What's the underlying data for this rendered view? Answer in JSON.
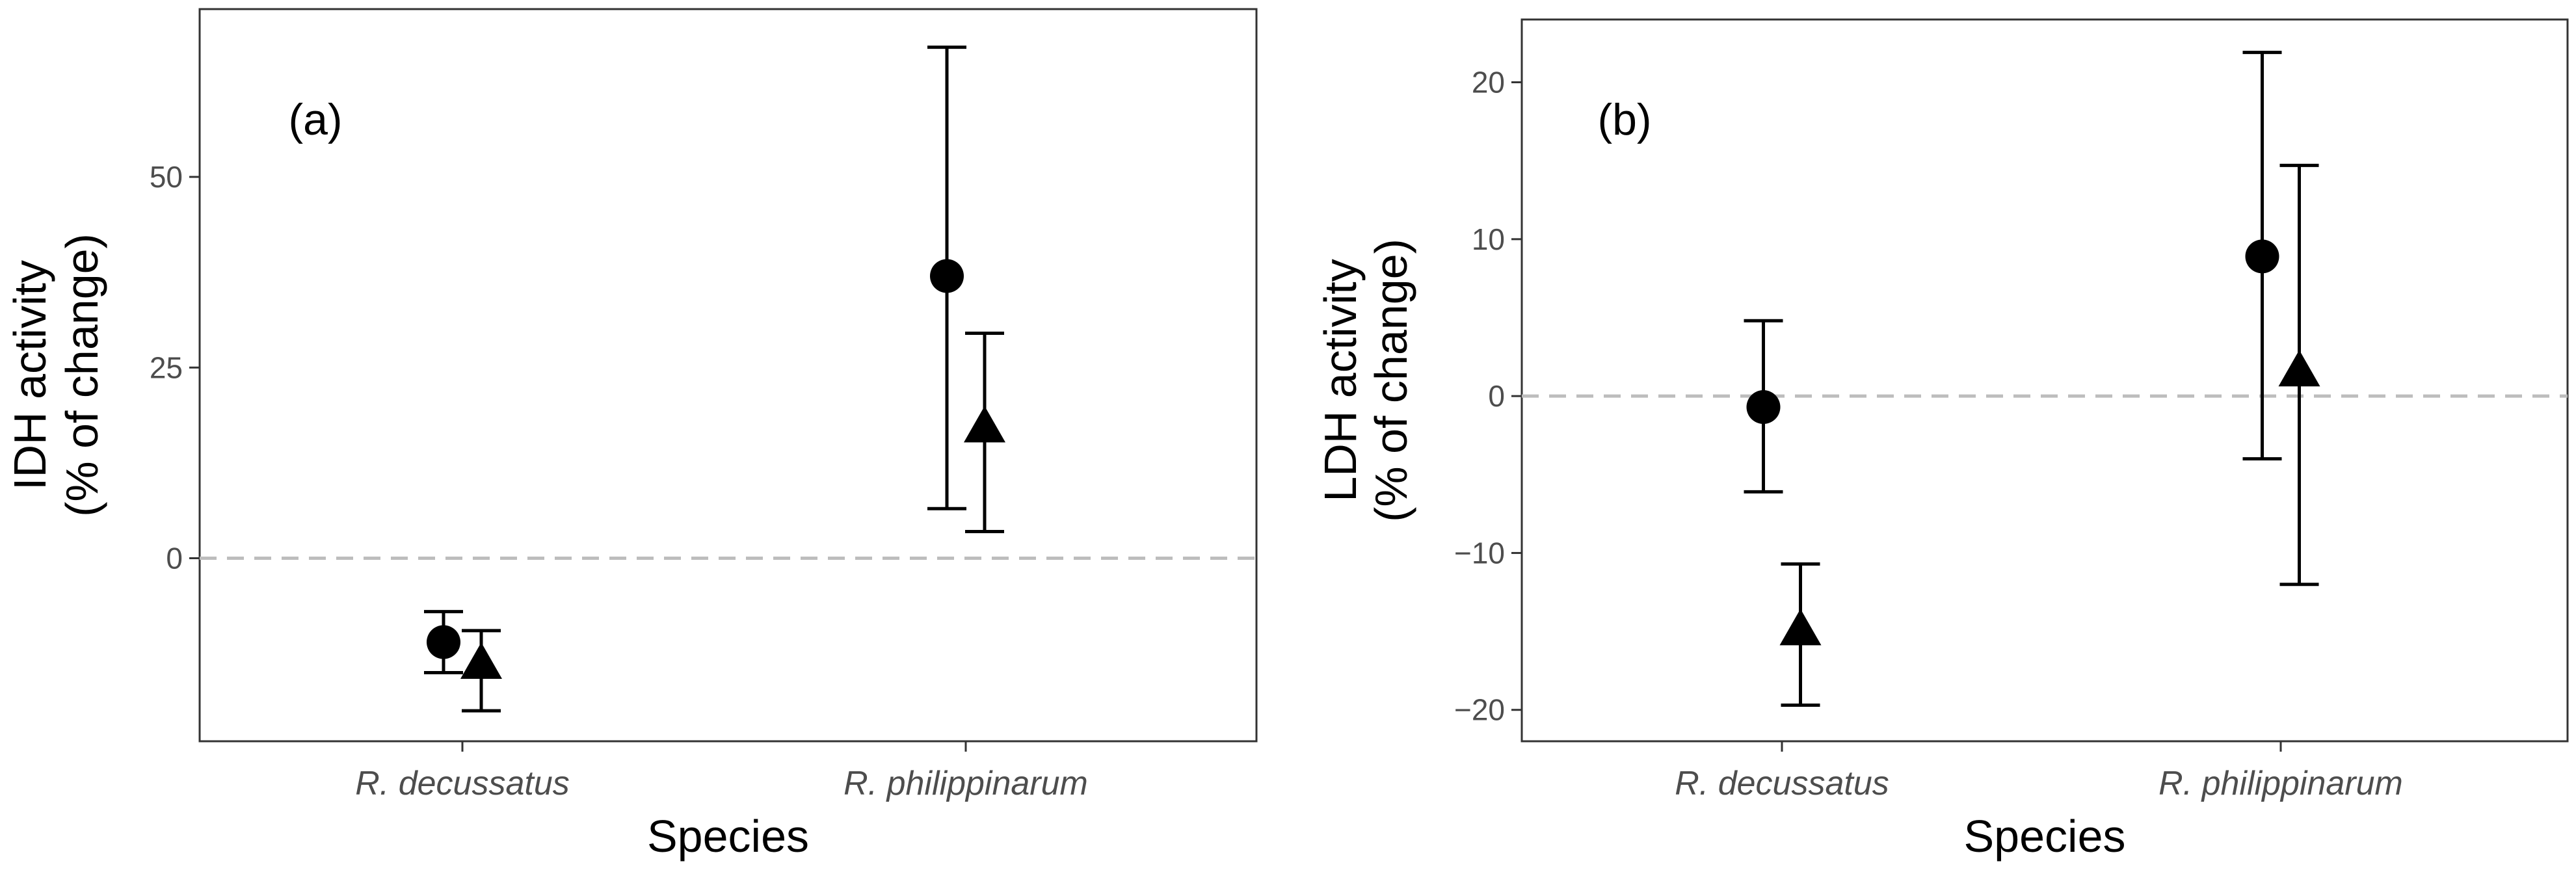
{
  "chart_data": [
    {
      "type": "scatter",
      "panel_label": "(a)",
      "xlabel": "Species",
      "ylabel_lines": [
        "IDH activity",
        "(% of change)"
      ],
      "categories": [
        "R. decussatus",
        "R. philippinarum"
      ],
      "ylim": [
        -24,
        72
      ],
      "yticks": [
        0,
        25,
        50
      ],
      "reference_line": 0,
      "grid": false,
      "series": [
        {
          "marker": "circle",
          "values": [
            -11,
            37
          ],
          "lower": [
            -15,
            6.5
          ],
          "upper": [
            -7,
            67
          ]
        },
        {
          "marker": "triangle",
          "values": [
            -14,
            17
          ],
          "lower": [
            -20,
            3.5
          ],
          "upper": [
            -9.5,
            29.5
          ]
        }
      ]
    },
    {
      "type": "scatter",
      "panel_label": "(b)",
      "xlabel": "Species",
      "ylabel_lines": [
        "LDH activity",
        "(% of change)"
      ],
      "categories": [
        "R. decussatus",
        "R. philippinarum"
      ],
      "ylim": [
        -22,
        24
      ],
      "yticks": [
        -20,
        -10,
        0,
        10,
        20
      ],
      "reference_line": 0,
      "grid": false,
      "series": [
        {
          "marker": "circle",
          "values": [
            -0.7,
            8.9
          ],
          "lower": [
            -6.1,
            -4
          ],
          "upper": [
            4.8,
            21.9
          ]
        },
        {
          "marker": "triangle",
          "values": [
            -15,
            1.5
          ],
          "lower": [
            -19.7,
            -12
          ],
          "upper": [
            -10.7,
            14.7
          ]
        }
      ]
    }
  ]
}
